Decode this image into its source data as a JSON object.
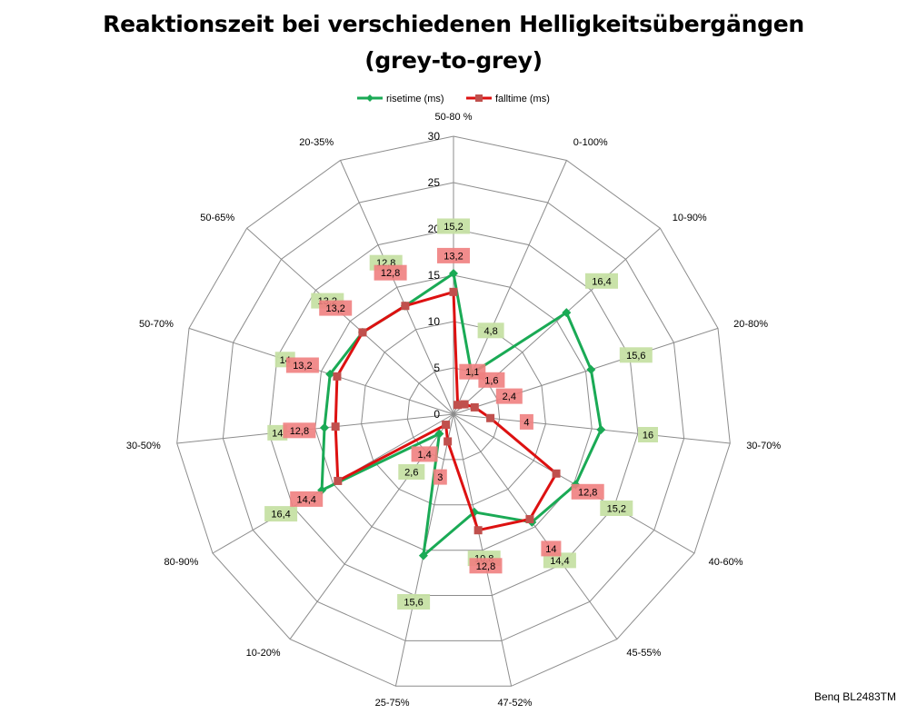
{
  "chart_data": {
    "type": "radar",
    "title": "Reaktionszeit bei verschiedenen Helligkeitsübergängen",
    "subtitle": "(grey-to-grey)",
    "categories": [
      "50-80 %",
      "0-100%",
      "10-90%",
      "20-80%",
      "30-70%",
      "40-60%",
      "45-55%",
      "47-52%",
      "25-75%",
      "10-20%",
      "80-90%",
      "30-50%",
      "50-70%",
      "50-65%",
      "20-35%"
    ],
    "rlim": [
      0,
      30
    ],
    "rticks": [
      "0",
      "5",
      "10",
      "15",
      "20",
      "25",
      "30"
    ],
    "legend_position": "top",
    "grid": true,
    "series": [
      {
        "name": "risetime (ms)",
        "color": "#1aaa55",
        "label_bg": "#c6e0a4",
        "marker": "diamond",
        "values": [
          15.2,
          4.8,
          16.4,
          15.6,
          16,
          15.2,
          14.4,
          10.8,
          15.6,
          2.6,
          16.4,
          14,
          14,
          13.2,
          12.8
        ],
        "labels": [
          "15,2",
          "4,8",
          "16,4",
          "15,6",
          "16",
          "15,2",
          "14,4",
          "10,8",
          "15,6",
          "2,6",
          "16,4",
          "14",
          "14",
          "13,2",
          "12,8"
        ]
      },
      {
        "name": "falltime (ms)",
        "color": "#dd1111",
        "label_bg": "#f08080",
        "marker": "square",
        "values": [
          13.2,
          1.1,
          1.6,
          2.4,
          4,
          12.8,
          14,
          12.8,
          3,
          1.4,
          14.4,
          12.8,
          13.2,
          13.2,
          12.8
        ],
        "labels": [
          "13,2",
          "1,1",
          "1,6",
          "2,4",
          "4",
          "12,8",
          "14",
          "12,8",
          "3",
          "1,4",
          "14,4",
          "12,8",
          "13,2",
          "13,2",
          "12,8"
        ]
      }
    ]
  },
  "footer": "Benq BL2483TM"
}
